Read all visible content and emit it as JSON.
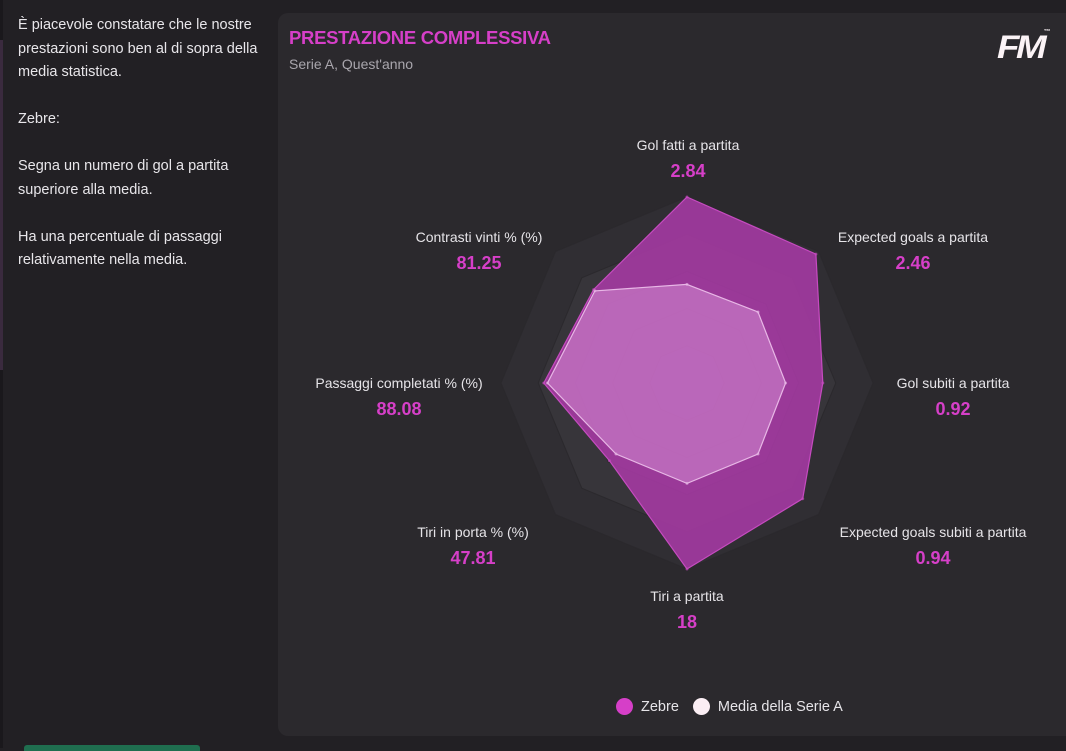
{
  "sidebar": {
    "paragraphs": [
      "È piacevole constatare che le nostre prestazioni sono ben al di sopra della media statistica.",
      "Zebre:",
      "Segna un numero di gol a partita superiore alla media.",
      "Ha una percentuale di passaggi relativamente nella media."
    ]
  },
  "panel": {
    "title": "PRESTAZIONE COMPLESSIVA",
    "subtitle": "Serie A, Quest'anno",
    "logo": "FM",
    "logo_tm": "™"
  },
  "colors": {
    "accent": "#d63fc8",
    "team_fill": "#a23aa0",
    "average_fill": "#d38dd4",
    "grid_ring": "#3a383e",
    "panel_bg": "#2b292d",
    "page_bg": "#222024"
  },
  "chart_data": {
    "type": "radar",
    "title": "PRESTAZIONE COMPLESSIVA",
    "subtitle": "Serie A, Quest'anno",
    "axes": [
      {
        "label": "Gol fatti a partita",
        "value": "2.84"
      },
      {
        "label": "Expected goals a partita",
        "value": "2.46"
      },
      {
        "label": "Gol subiti a partita",
        "value": "0.92"
      },
      {
        "label": "Expected goals subiti a partita",
        "value": "0.94"
      },
      {
        "label": "Tiri a partita",
        "value": "18"
      },
      {
        "label": "Tiri in porta % (%)",
        "value": "47.81"
      },
      {
        "label": "Passaggi completati % (%)",
        "value": "88.08"
      },
      {
        "label": "Contrasti vinti % (%)",
        "value": "81.25"
      }
    ],
    "grid_levels": 5,
    "range": [
      0,
      1
    ],
    "series": [
      {
        "name": "Zebre",
        "color": "#d63fc8",
        "values": [
          1.0,
          0.98,
          0.73,
          0.88,
          1.0,
          0.59,
          0.77,
          0.71
        ]
      },
      {
        "name": "Media della Serie A",
        "color": "#fbeef4",
        "values": [
          0.53,
          0.54,
          0.53,
          0.54,
          0.54,
          0.54,
          0.75,
          0.7
        ]
      }
    ],
    "legend": {
      "position": "bottom-center",
      "items": [
        {
          "label": "Zebre",
          "color": "#d63fc8"
        },
        {
          "label": "Media della Serie A",
          "color": "#fbeef4"
        }
      ]
    }
  }
}
